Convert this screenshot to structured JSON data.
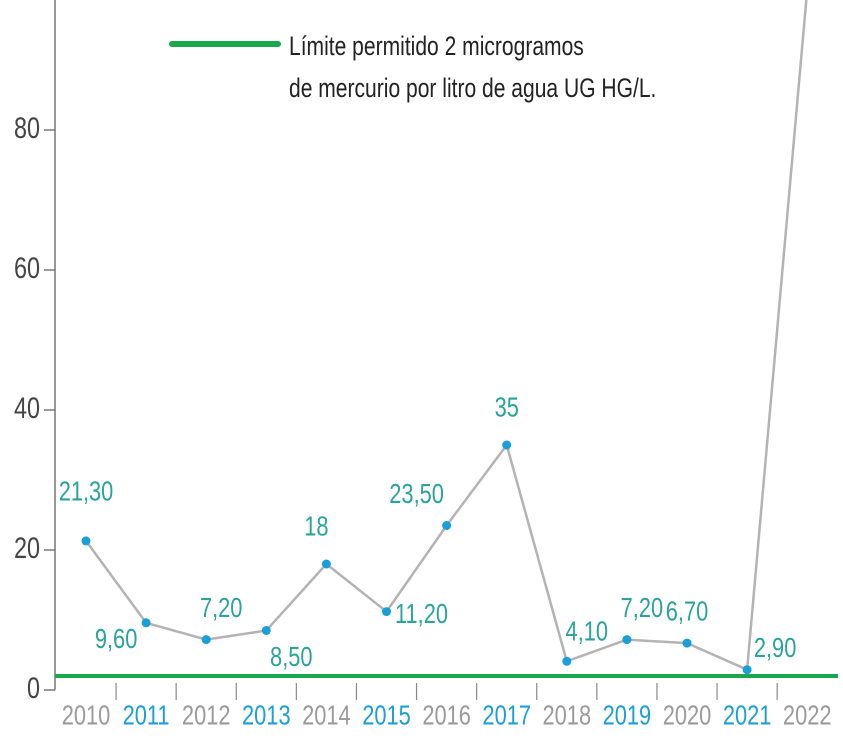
{
  "chart_data": {
    "type": "line",
    "categories": [
      "2010",
      "2011",
      "2012",
      "2013",
      "2014",
      "2015",
      "2016",
      "2017",
      "2018",
      "2019",
      "2020",
      "2021",
      "2022"
    ],
    "category_label_colors": [
      "#9a9a9a",
      "#1a9fd9",
      "#9a9a9a",
      "#1a9fd9",
      "#9a9a9a",
      "#1a9fd9",
      "#9a9a9a",
      "#1a9fd9",
      "#9a9a9a",
      "#1a9fd9",
      "#9a9a9a",
      "#1a9fd9",
      "#9a9a9a"
    ],
    "series": [
      {
        "values": [
          21.3,
          9.6,
          7.2,
          8.5,
          18,
          11.2,
          23.5,
          35,
          4.1,
          7.2,
          6.7,
          2.9,
          100
        ],
        "value_labels": [
          "21,30",
          "9,60",
          "7,20",
          "8,50",
          "18",
          "11,20",
          "23,50",
          "35",
          "4,10",
          "7,20",
          "6,70",
          "2,90",
          null
        ],
        "color": "#b3b3b3",
        "marker_color": "#1a9fd9",
        "label_color": "#2aa39b"
      }
    ],
    "threshold": {
      "value": 2,
      "color": "#1aa84a",
      "label": [
        "Límite permitido 2 microgramos",
        "de mercurio por litro de agua UG HG/L."
      ]
    },
    "ylim": [
      0,
      98
    ],
    "yticks": [
      0,
      20,
      40,
      60,
      80
    ]
  }
}
